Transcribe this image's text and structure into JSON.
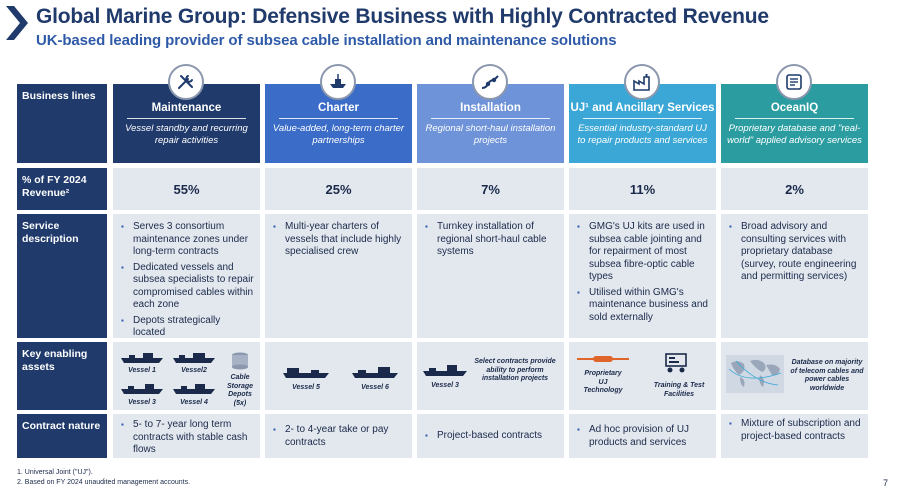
{
  "header": {
    "title": "Global Marine Group: Defensive Business with Highly Contracted Revenue",
    "subtitle": "UK-based leading provider of subsea cable installation and maintenance solutions"
  },
  "row_labels": {
    "business_lines": "Business lines",
    "revenue": "% of FY 2024 Revenue²",
    "service": "Service description",
    "assets": "Key enabling assets",
    "contract": "Contract nature"
  },
  "columns": [
    {
      "name": "Maintenance",
      "desc": "Vessel standby and recurring repair activities",
      "icon": "tools-icon",
      "color": "#1f3a6b",
      "pct": "55%",
      "service": [
        "Serves 3 consortium maintenance zones under long-term contracts",
        "Dedicated vessels and subsea specialists to repair compromised cables within each zone",
        "Depots strategically located"
      ],
      "assets": [
        "Vessel 1",
        "Vessel2",
        "Vessel 3",
        "Vessel 4",
        "Cable Storage Depots (5x)"
      ],
      "contract": [
        "5- to 7- year long term contracts with stable cash flows"
      ]
    },
    {
      "name": "Charter",
      "desc": "Value-added, long-term charter partnerships",
      "icon": "ship-icon",
      "color": "#3a6cc8",
      "pct": "25%",
      "service": [
        "Multi-year charters of vessels that include highly specialised crew"
      ],
      "assets": [
        "Vessel 5",
        "Vessel 6"
      ],
      "contract": [
        "2- to 4-year take or pay contracts"
      ]
    },
    {
      "name": "Installation",
      "desc": "Regional short-haul installation projects",
      "icon": "cable-icon",
      "color": "#6f93d8",
      "pct": "7%",
      "service": [
        "Turnkey installation of regional short-haul cable systems"
      ],
      "assets": [
        "Vessel 3",
        "Select contracts provide ability to perform installation projects"
      ],
      "contract": [
        "Project-based contracts"
      ]
    },
    {
      "name": "UJ¹ and Ancillary Services",
      "desc": "Essential industry-standard UJ to repair products and services",
      "icon": "factory-icon",
      "color": "#3aa7d6",
      "pct": "11%",
      "service": [
        "GMG's UJ kits are used in subsea cable jointing and for repairment of most subsea fibre-optic cable types",
        "Utilised within GMG's maintenance business and sold externally"
      ],
      "assets": [
        "Proprietary UJ Technology",
        "Training & Test Facilities"
      ],
      "contract": [
        "Ad hoc provision of UJ products and services"
      ]
    },
    {
      "name": "OceanIQ",
      "desc": "Proprietary database and \"real-world\" applied advisory services",
      "icon": "database-icon",
      "color": "#2b9da0",
      "pct": "2%",
      "service": [
        "Broad advisory and consulting services with proprietary database (survey, route engineering and permitting services)"
      ],
      "assets": [
        "Database on majority of telecom cables and power cables worldwide"
      ],
      "contract": [
        "Mixture of subscription and project-based contracts"
      ]
    }
  ],
  "footnotes": [
    "1.   Universal Joint (\"UJ\").",
    "2.   Based on FY 2024 unaudited management accounts."
  ],
  "page_number": "7"
}
